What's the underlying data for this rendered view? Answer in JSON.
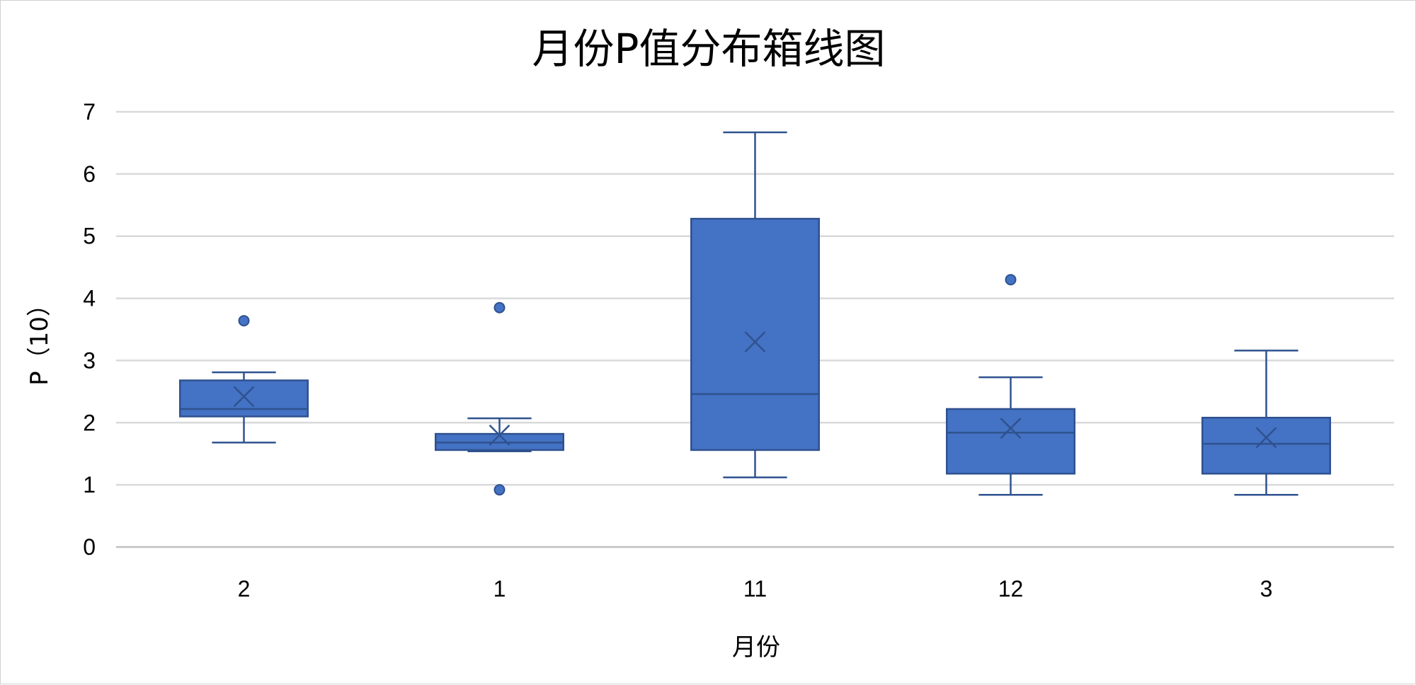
{
  "chart_data": {
    "type": "box",
    "title": "月份P值分布箱线图",
    "xlabel": "月份",
    "ylabel": "P（10）",
    "ylim": [
      0,
      7
    ],
    "yticks": [
      0,
      1,
      2,
      3,
      4,
      5,
      6,
      7
    ],
    "grid": true,
    "legend": "none",
    "categories": [
      "2",
      "1",
      "11",
      "12",
      "3"
    ],
    "boxes": [
      {
        "category": "2",
        "whisker_low": 1.68,
        "q1": 2.1,
        "median": 2.22,
        "q3": 2.68,
        "whisker_high": 2.81,
        "mean": 2.42,
        "outliers": [
          3.64
        ]
      },
      {
        "category": "1",
        "whisker_low": 1.54,
        "q1": 1.56,
        "median": 1.68,
        "q3": 1.82,
        "whisker_high": 2.07,
        "mean": 1.8,
        "outliers": [
          3.85,
          0.92
        ]
      },
      {
        "category": "11",
        "whisker_low": 1.12,
        "q1": 1.56,
        "median": 2.46,
        "q3": 5.28,
        "whisker_high": 6.67,
        "mean": 3.3,
        "outliers": []
      },
      {
        "category": "12",
        "whisker_low": 0.84,
        "q1": 1.18,
        "median": 1.84,
        "q3": 2.22,
        "whisker_high": 2.73,
        "mean": 1.91,
        "outliers": [
          4.3
        ]
      },
      {
        "category": "3",
        "whisker_low": 0.84,
        "q1": 1.18,
        "median": 1.66,
        "q3": 2.08,
        "whisker_high": 3.16,
        "mean": 1.76,
        "outliers": []
      }
    ],
    "colors": {
      "box_fill": "#4472C4",
      "box_stroke": "#2F528F",
      "grid": "#D9D9D9",
      "axis": "#BFBFBF"
    }
  }
}
